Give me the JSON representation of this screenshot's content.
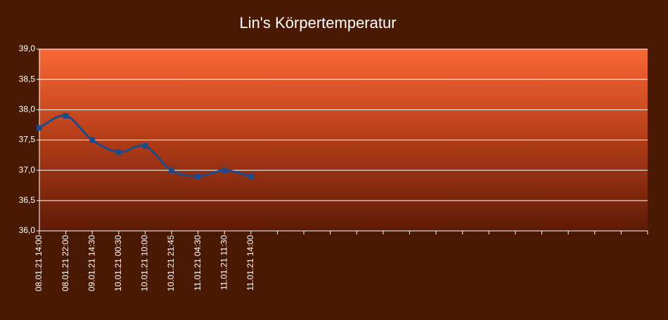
{
  "chart_data": {
    "type": "line",
    "title": "Lin's Körpertemperatur",
    "categories": [
      "08.01.21 14:00",
      "08.01.21 22:00",
      "09.01.21 14:30",
      "10.01.21 00:30",
      "10.01.21 10:00",
      "10.01.21 21:45",
      "11.01.21 04:30",
      "11.01.21 11:30",
      "11.01.21 14:00",
      null,
      null,
      null,
      null,
      null,
      null,
      null,
      null,
      null,
      null,
      null,
      null,
      null,
      null,
      null
    ],
    "series": [
      {
        "name": "Körpertemperatur",
        "color": "#1f4a8a",
        "values": [
          37.7,
          37.9,
          37.5,
          37.3,
          37.4,
          37.0,
          36.9,
          37.0,
          36.9,
          null,
          null,
          null,
          null,
          null,
          null,
          null,
          null,
          null,
          null,
          null,
          null,
          null,
          null,
          null
        ]
      }
    ],
    "ylim": [
      36,
      39
    ],
    "yticks": [
      {
        "value": 36,
        "label": "36,0"
      },
      {
        "value": 36.5,
        "label": "36,5"
      },
      {
        "value": 37,
        "label": "37,0"
      },
      {
        "value": 37.5,
        "label": "37,5"
      },
      {
        "value": 38,
        "label": "38,0"
      },
      {
        "value": 38.5,
        "label": "38,5"
      },
      {
        "value": 39,
        "label": "39,0"
      }
    ],
    "grid": true
  }
}
